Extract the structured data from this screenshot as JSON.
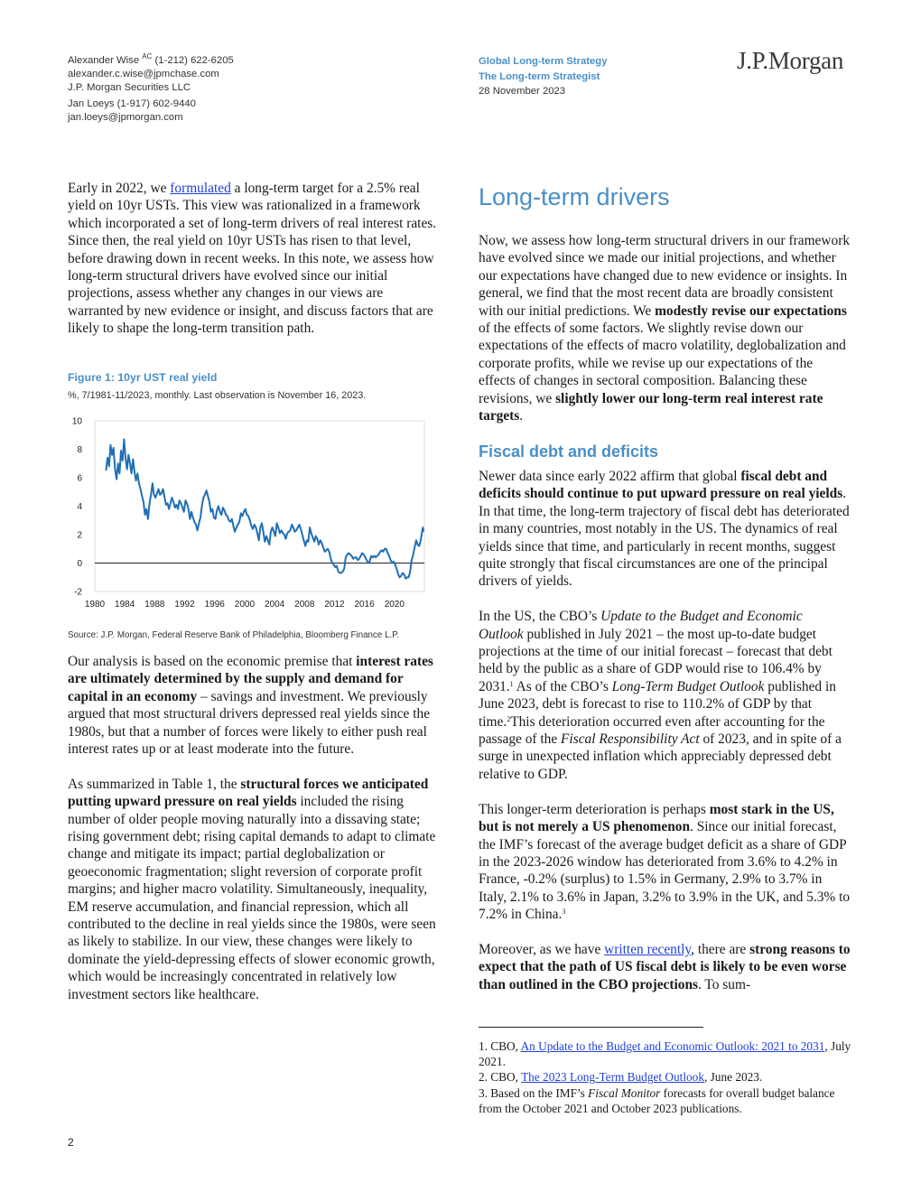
{
  "header": {
    "authors": [
      {
        "line1": "Alexander Wise ",
        "sup": "AC",
        "line1b": " (1-212) 622-6205",
        "email": "alexander.c.wise@jpmchase.com",
        "firm": "J.P. Morgan Securities LLC"
      },
      {
        "line1": "Jan Loeys  (1-917) 602-9440",
        "email": "jan.loeys@jpmorgan.com"
      }
    ],
    "series": "Global Long-term Strategy",
    "publication": "The Long-term Strategist",
    "date": "28 November 2023",
    "logo": "J.P.Morgan"
  },
  "left": {
    "intro": {
      "t1": "Early in 2022, we ",
      "link": "formulated",
      "t2": " a long-term target for a 2.5% real yield on 10yr USTs. This view was rationalized in a framework which incorporated a set of long-term drivers of real interest rates. Since then, the real yield on 10yr USTs has risen to that level, before drawing down in recent weeks. In this note, we assess how long-term structural drivers have evolved since our initial projections, assess whether any changes in our views are warranted by new evidence or insight, and discuss factors that are likely to shape the long-term transition path."
    },
    "figure": {
      "title": "Figure 1: 10yr UST real yield",
      "subtitle": "%, 7/1981-11/2023, monthly. Last observation is November 16, 2023.",
      "source": "Source: J.P. Morgan, Federal Reserve Bank of Philadelphia, Bloomberg Finance L.P."
    },
    "p2": {
      "t1": "Our analysis is based on the economic premise that ",
      "b1": "interest rates are ultimately determined by the supply and demand for capital in an economy",
      "t2": " – savings and investment. We previously argued that most structural drivers depressed real yields since the 1980s, but that a number of forces were likely to either push real interest rates up or at least moderate into the future."
    },
    "p3": {
      "t1": "As summarized in Table 1, the ",
      "b1": "structural forces we anticipated putting upward pressure on real yields",
      "t2": " included the rising number of older people moving naturally into a dissaving state; rising government debt; rising capital demands to adapt to climate change and mitigate its impact; partial deglobalization or geoeconomic fragmentation; slight reversion of corporate profit margins; and higher macro volatility. Simultaneously, inequality, EM reserve accumulation, and financial repression, which all contributed to the decline in real yields since the 1980s, were seen as likely to stabilize. In our view, these changes were likely to dominate the yield-depressing effects of slower economic growth, which would be increasingly concentrated in relatively low investment sectors like healthcare."
    },
    "page_number": "2"
  },
  "right": {
    "section_title": "Long-term drivers",
    "p1": {
      "t1": "Now, we assess how long-term structural drivers in our framework have evolved since we made our initial projections, and whether our expectations have changed due to new evidence or insights. In general, we find that the most recent data are broadly consistent with our initial predictions. We ",
      "b1": "modestly revise our expectations",
      "t2": " of the effects of some factors. We slightly revise down our expectations of the effects of macro volatility, deglobalization and corporate profits, while we revise up our expectations of the effects of changes in sectoral composition. Balancing these revisions, we ",
      "b2": "slightly lower our long-term real interest rate targets",
      "t3": "."
    },
    "subsection_title": "Fiscal debt and deficits",
    "p2": {
      "t1": "Newer data since early 2022 affirm that global ",
      "b1": "fiscal debt and deficits should continue to put upward pressure on real yields",
      "t2": ". In that time, the long-term trajectory of fiscal debt has deteriorated in many countries, most notably in the US. The dynamics of real yields since that time, and particularly in recent months, suggest quite strongly that fiscal circumstances are one of the principal drivers of yields."
    },
    "p3": {
      "t1": "In the US, the CBO’s ",
      "i1": "Update to the Budget and Economic Outlook",
      "t2": " published in July 2021 – the most up-to-date budget projections at the time of our initial forecast – forecast that debt held by the public as a share of GDP would rise to 106.4% by 2031.",
      "fn1": "1",
      "t3": " As of the CBO’s ",
      "i2": "Long-Term Budget Outlook",
      "t4": " published in June 2023, debt is forecast to rise to 110.2% of GDP by that time.",
      "fn2": "2",
      "t5": "This deterioration occurred even after accounting for the passage of the ",
      "i3": "Fiscal Responsibility Act",
      "t6": " of 2023, and in spite of a surge in unexpected inflation which appreciably depressed debt relative to GDP."
    },
    "p4": {
      "t1": "This longer-term deterioration is perhaps ",
      "b1": "most stark in the US, but is not merely a US phenomenon",
      "t2": ". Since our initial forecast, the IMF’s forecast of the average budget deficit as a share of GDP in the 2023-2026 window has deteriorated from 3.6% to 4.2% in France, -0.2% (surplus) to 1.5% in Germany, 2.9% to 3.7% in Italy, 2.1% to 3.6% in Japan, 3.2% to 3.9% in the UK, and 5.3% to 7.2% in China.",
      "fn3": "3"
    },
    "p5": {
      "t1": "Moreover, as we have ",
      "link": "written recently",
      "t2": ", there are ",
      "b1": "strong reasons to expect that the path of US fiscal debt is likely to be even worse than outlined in the CBO projections",
      "t3": ". To sum-"
    },
    "footnotes": [
      {
        "num": "1.",
        "pre": " CBO, ",
        "link": "An Update to the Budget and Economic Outlook: 2021 to 2031",
        "post": ", July 2021."
      },
      {
        "num": "2.",
        "pre": " CBO, ",
        "link": "The 2023 Long-Term Budget Outlook",
        "post": ", June 2023."
      },
      {
        "num": "3.",
        "pre": " Based on the IMF’s ",
        "ital": "Fiscal Monitor",
        "post": " forecasts for overall budget balance from the October 2021 and October 2023 publications."
      }
    ]
  },
  "chart_data": {
    "type": "line",
    "title": "Figure 1: 10yr UST real yield",
    "subtitle": "%, 7/1981-11/2023, monthly. Last observation is November 16, 2023.",
    "xlabel": "",
    "ylabel": "",
    "xlim": [
      1980,
      2024
    ],
    "ylim": [
      -2,
      10
    ],
    "yticks": [
      -2,
      0,
      2,
      4,
      6,
      8,
      10
    ],
    "xticks": [
      1980,
      1984,
      1988,
      1992,
      1996,
      2000,
      2004,
      2008,
      2012,
      2016,
      2020
    ],
    "line_color": "#1f6fb4",
    "series": [
      {
        "values": [
          [
            1981.5,
            6.5
          ],
          [
            1981.7,
            7.4
          ],
          [
            1981.9,
            6.8
          ],
          [
            1982.1,
            8.3
          ],
          [
            1982.3,
            7.6
          ],
          [
            1982.5,
            8.1
          ],
          [
            1982.7,
            6.6
          ],
          [
            1982.9,
            5.9
          ],
          [
            1983.1,
            7.0
          ],
          [
            1983.3,
            6.3
          ],
          [
            1983.5,
            7.9
          ],
          [
            1983.7,
            7.2
          ],
          [
            1983.9,
            8.7
          ],
          [
            1984.1,
            7.4
          ],
          [
            1984.3,
            6.6
          ],
          [
            1984.5,
            7.6
          ],
          [
            1984.7,
            7.0
          ],
          [
            1984.9,
            6.3
          ],
          [
            1985.1,
            7.3
          ],
          [
            1985.3,
            6.4
          ],
          [
            1985.5,
            5.8
          ],
          [
            1985.7,
            6.3
          ],
          [
            1985.9,
            5.6
          ],
          [
            1986.1,
            5.2
          ],
          [
            1986.3,
            4.7
          ],
          [
            1986.5,
            4.3
          ],
          [
            1986.7,
            3.4
          ],
          [
            1986.9,
            3.8
          ],
          [
            1987.1,
            3.1
          ],
          [
            1987.3,
            4.2
          ],
          [
            1987.5,
            4.8
          ],
          [
            1987.7,
            5.6
          ],
          [
            1987.9,
            4.8
          ],
          [
            1988.1,
            4.6
          ],
          [
            1988.3,
            4.9
          ],
          [
            1988.5,
            5.2
          ],
          [
            1988.7,
            4.8
          ],
          [
            1988.9,
            4.9
          ],
          [
            1989.1,
            5.2
          ],
          [
            1989.3,
            4.7
          ],
          [
            1989.5,
            4.1
          ],
          [
            1989.7,
            4.2
          ],
          [
            1989.9,
            3.8
          ],
          [
            1990.1,
            4.2
          ],
          [
            1990.3,
            4.6
          ],
          [
            1990.5,
            4.3
          ],
          [
            1990.7,
            3.9
          ],
          [
            1990.9,
            4.1
          ],
          [
            1991.1,
            3.8
          ],
          [
            1991.3,
            4.4
          ],
          [
            1991.5,
            4.2
          ],
          [
            1991.7,
            3.9
          ],
          [
            1991.9,
            3.6
          ],
          [
            1992.1,
            4.4
          ],
          [
            1992.3,
            4.2
          ],
          [
            1992.5,
            3.8
          ],
          [
            1992.7,
            3.1
          ],
          [
            1992.9,
            3.6
          ],
          [
            1993.1,
            3.2
          ],
          [
            1993.3,
            2.9
          ],
          [
            1993.5,
            2.7
          ],
          [
            1993.7,
            2.3
          ],
          [
            1993.9,
            2.8
          ],
          [
            1994.1,
            3.2
          ],
          [
            1994.3,
            4.0
          ],
          [
            1994.5,
            4.6
          ],
          [
            1994.7,
            4.8
          ],
          [
            1994.9,
            5.1
          ],
          [
            1995.1,
            4.7
          ],
          [
            1995.3,
            4.3
          ],
          [
            1995.5,
            3.6
          ],
          [
            1995.7,
            3.8
          ],
          [
            1995.9,
            3.2
          ],
          [
            1996.1,
            3.1
          ],
          [
            1996.3,
            3.7
          ],
          [
            1996.5,
            4.0
          ],
          [
            1996.7,
            3.6
          ],
          [
            1996.9,
            3.4
          ],
          [
            1997.1,
            3.9
          ],
          [
            1997.3,
            3.7
          ],
          [
            1997.5,
            3.4
          ],
          [
            1997.7,
            3.3
          ],
          [
            1997.9,
            3.0
          ],
          [
            1998.1,
            2.9
          ],
          [
            1998.3,
            3.1
          ],
          [
            1998.5,
            2.6
          ],
          [
            1998.7,
            2.2
          ],
          [
            1998.9,
            2.5
          ],
          [
            1999.1,
            2.7
          ],
          [
            1999.3,
            2.9
          ],
          [
            1999.5,
            3.5
          ],
          [
            1999.7,
            3.3
          ],
          [
            1999.9,
            3.6
          ],
          [
            2000.1,
            3.8
          ],
          [
            2000.3,
            3.4
          ],
          [
            2000.5,
            3.3
          ],
          [
            2000.7,
            3.0
          ],
          [
            2000.9,
            2.6
          ],
          [
            2001.1,
            2.4
          ],
          [
            2001.3,
            2.7
          ],
          [
            2001.5,
            2.5
          ],
          [
            2001.7,
            2.1
          ],
          [
            2001.9,
            1.6
          ],
          [
            2002.1,
            2.5
          ],
          [
            2002.3,
            2.8
          ],
          [
            2002.5,
            2.2
          ],
          [
            2002.7,
            1.5
          ],
          [
            2002.9,
            1.9
          ],
          [
            2003.1,
            1.6
          ],
          [
            2003.3,
            1.3
          ],
          [
            2003.5,
            2.2
          ],
          [
            2003.7,
            2.5
          ],
          [
            2003.9,
            2.2
          ],
          [
            2004.1,
            1.9
          ],
          [
            2004.3,
            2.8
          ],
          [
            2004.5,
            2.5
          ],
          [
            2004.7,
            2.1
          ],
          [
            2004.9,
            2.3
          ],
          [
            2005.1,
            2.1
          ],
          [
            2005.3,
            2.0
          ],
          [
            2005.5,
            1.7
          ],
          [
            2005.7,
            2.1
          ],
          [
            2005.9,
            2.2
          ],
          [
            2006.1,
            2.3
          ],
          [
            2006.3,
            2.7
          ],
          [
            2006.5,
            2.5
          ],
          [
            2006.7,
            2.2
          ],
          [
            2006.9,
            2.3
          ],
          [
            2007.1,
            2.5
          ],
          [
            2007.3,
            2.7
          ],
          [
            2007.5,
            2.4
          ],
          [
            2007.7,
            2.0
          ],
          [
            2007.9,
            1.6
          ],
          [
            2008.1,
            1.2
          ],
          [
            2008.3,
            1.6
          ],
          [
            2008.5,
            1.5
          ],
          [
            2008.7,
            2.5
          ],
          [
            2008.9,
            2.1
          ],
          [
            2009.1,
            1.8
          ],
          [
            2009.3,
            1.5
          ],
          [
            2009.5,
            1.9
          ],
          [
            2009.7,
            1.7
          ],
          [
            2009.9,
            1.3
          ],
          [
            2010.1,
            1.6
          ],
          [
            2010.3,
            1.4
          ],
          [
            2010.5,
            1.1
          ],
          [
            2010.7,
            0.8
          ],
          [
            2010.9,
            0.9
          ],
          [
            2011.1,
            1.0
          ],
          [
            2011.3,
            0.8
          ],
          [
            2011.5,
            0.3
          ],
          [
            2011.7,
            0.0
          ],
          [
            2011.9,
            -0.1
          ],
          [
            2012.1,
            -0.3
          ],
          [
            2012.3,
            -0.2
          ],
          [
            2012.5,
            -0.6
          ],
          [
            2012.7,
            -0.7
          ],
          [
            2012.9,
            -0.7
          ],
          [
            2013.1,
            -0.6
          ],
          [
            2013.3,
            -0.4
          ],
          [
            2013.5,
            0.4
          ],
          [
            2013.7,
            0.6
          ],
          [
            2013.9,
            0.7
          ],
          [
            2014.1,
            0.6
          ],
          [
            2014.3,
            0.5
          ],
          [
            2014.5,
            0.3
          ],
          [
            2014.7,
            0.4
          ],
          [
            2014.9,
            0.4
          ],
          [
            2015.1,
            0.2
          ],
          [
            2015.3,
            0.3
          ],
          [
            2015.5,
            0.5
          ],
          [
            2015.7,
            0.7
          ],
          [
            2015.9,
            0.6
          ],
          [
            2016.1,
            0.4
          ],
          [
            2016.3,
            0.2
          ],
          [
            2016.5,
            0.0
          ],
          [
            2016.7,
            0.1
          ],
          [
            2016.9,
            0.5
          ],
          [
            2017.1,
            0.4
          ],
          [
            2017.3,
            0.5
          ],
          [
            2017.5,
            0.4
          ],
          [
            2017.7,
            0.5
          ],
          [
            2017.9,
            0.6
          ],
          [
            2018.1,
            0.8
          ],
          [
            2018.3,
            0.9
          ],
          [
            2018.5,
            0.8
          ],
          [
            2018.7,
            1.0
          ],
          [
            2018.9,
            1.0
          ],
          [
            2019.1,
            0.7
          ],
          [
            2019.3,
            0.5
          ],
          [
            2019.5,
            0.2
          ],
          [
            2019.7,
            0.0
          ],
          [
            2019.9,
            0.1
          ],
          [
            2020.1,
            -0.1
          ],
          [
            2020.3,
            -0.4
          ],
          [
            2020.5,
            -0.8
          ],
          [
            2020.7,
            -1.0
          ],
          [
            2020.9,
            -0.9
          ],
          [
            2021.1,
            -0.7
          ],
          [
            2021.3,
            -0.8
          ],
          [
            2021.5,
            -1.1
          ],
          [
            2021.7,
            -1.0
          ],
          [
            2021.9,
            -1.0
          ],
          [
            2022.1,
            -0.6
          ],
          [
            2022.3,
            0.2
          ],
          [
            2022.5,
            0.6
          ],
          [
            2022.7,
            1.1
          ],
          [
            2022.9,
            1.6
          ],
          [
            2023.1,
            1.3
          ],
          [
            2023.3,
            1.2
          ],
          [
            2023.5,
            1.6
          ],
          [
            2023.7,
            2.2
          ],
          [
            2023.8,
            2.5
          ],
          [
            2023.88,
            2.2
          ]
        ]
      }
    ]
  }
}
